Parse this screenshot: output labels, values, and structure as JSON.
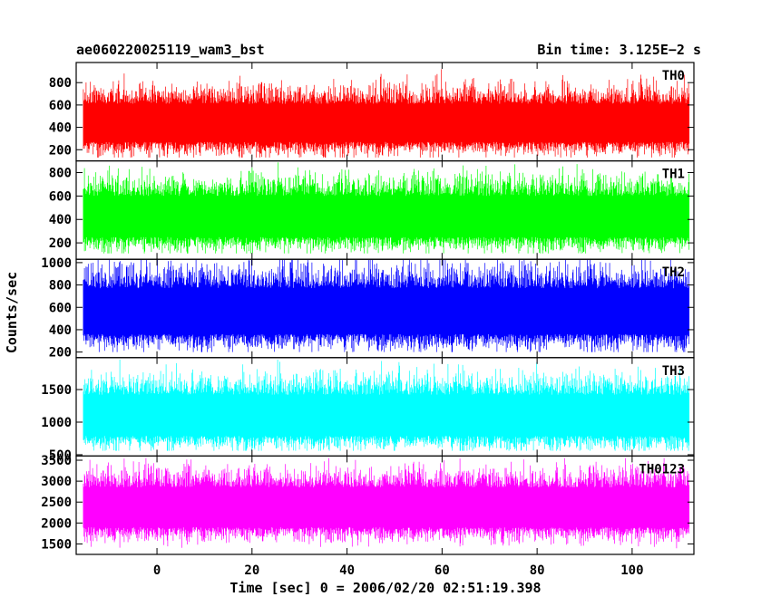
{
  "header": {
    "title": "ae060220025119_wam3_bst",
    "bin_time": "Bin time: 3.125E−2 s"
  },
  "chart_data": {
    "type": "line",
    "title": "ae060220025119_wam3_bst",
    "xlabel": "Time [sec] 0 = 2006/02/20 02:51:19.398",
    "ylabel": "Counts/sec",
    "xlim": [
      -17,
      113
    ],
    "x_ticks": [
      0,
      20,
      40,
      60,
      80,
      100
    ],
    "x_tick_labels": [
      "0",
      "20",
      "40",
      "60",
      "80",
      "100"
    ],
    "data_x_range": [
      -15.5,
      112
    ],
    "panels": [
      {
        "name": "TH0",
        "color": "#ff0000",
        "ylim": [
          100,
          980
        ],
        "y_ticks": [
          200,
          400,
          600,
          800
        ],
        "y_tick_labels": [
          "200",
          "400",
          "600",
          "800"
        ],
        "mean": 430,
        "band_low": 270,
        "band_high": 610,
        "min": 130,
        "max": 970
      },
      {
        "name": "TH1",
        "color": "#00ff00",
        "ylim": [
          60,
          900
        ],
        "y_ticks": [
          200,
          400,
          600,
          800
        ],
        "y_tick_labels": [
          "200",
          "400",
          "600",
          "800"
        ],
        "mean": 420,
        "band_low": 250,
        "band_high": 600,
        "min": 110,
        "max": 890
      },
      {
        "name": "TH2",
        "color": "#0000ff",
        "ylim": [
          150,
          1030
        ],
        "y_ticks": [
          200,
          400,
          600,
          800,
          1000
        ],
        "y_tick_labels": [
          "200",
          "400",
          "600",
          "800",
          "1000"
        ],
        "mean": 560,
        "band_low": 360,
        "band_high": 770,
        "min": 200,
        "max": 1025
      },
      {
        "name": "TH3",
        "color": "#00ffff",
        "ylim": [
          480,
          1990
        ],
        "y_ticks": [
          500,
          1000,
          1500
        ],
        "y_tick_labels": [
          "500",
          "1000",
          "1500"
        ],
        "mean": 1080,
        "band_low": 790,
        "band_high": 1420,
        "min": 560,
        "max": 1960
      },
      {
        "name": "TH0123",
        "color": "#ff00ff",
        "ylim": [
          1250,
          3600
        ],
        "y_ticks": [
          1500,
          2000,
          2500,
          3000,
          3500
        ],
        "y_tick_labels": [
          "1500",
          "2000",
          "2500",
          "3000",
          "3500"
        ],
        "mean": 2330,
        "band_low": 1900,
        "band_high": 2850,
        "min": 1300,
        "max": 3550
      }
    ]
  }
}
